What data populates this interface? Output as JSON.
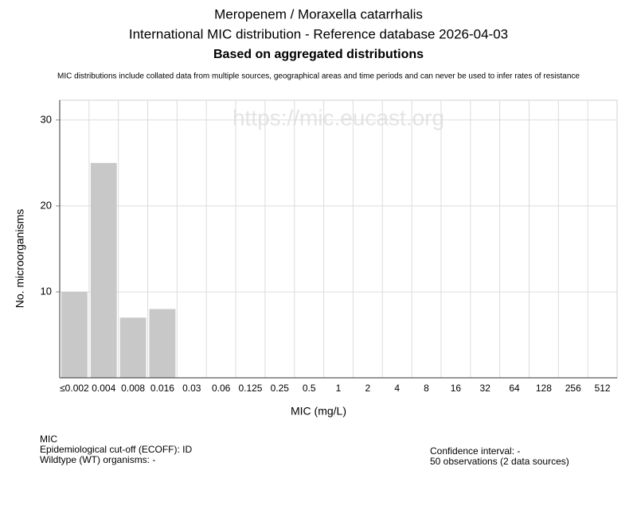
{
  "chart_data": {
    "type": "bar",
    "title_lines": [
      "Meropenem / Moraxella catarrhalis",
      "International MIC distribution - Reference database 2026-04-03",
      "Based on aggregated distributions"
    ],
    "note": "MIC distributions include collated data from multiple sources, geographical areas and time periods and can never be used to infer rates of resistance",
    "watermark": "https://mic.eucast.org",
    "x_label": "MIC (mg/L)",
    "y_label": "No. microorganisms",
    "categories": [
      "≤0.002",
      "0.004",
      "0.008",
      "0.016",
      "0.03",
      "0.06",
      "0.125",
      "0.25",
      "0.5",
      "1",
      "2",
      "4",
      "8",
      "16",
      "32",
      "64",
      "128",
      "256",
      "512"
    ],
    "values": [
      10,
      25,
      7,
      8,
      0,
      0,
      0,
      0,
      0,
      0,
      0,
      0,
      0,
      0,
      0,
      0,
      0,
      0,
      0
    ],
    "color": "#c8c8c8",
    "ylim": [
      0,
      32.3
    ],
    "yticks": [
      10,
      20,
      30
    ],
    "grid": true
  },
  "footer": {
    "left": [
      "MIC",
      "Epidemiological cut-off (ECOFF): ID",
      "Wildtype (WT) organisms:  -"
    ],
    "right": [
      "Confidence interval: -",
      "50 observations (2 data sources)"
    ]
  }
}
